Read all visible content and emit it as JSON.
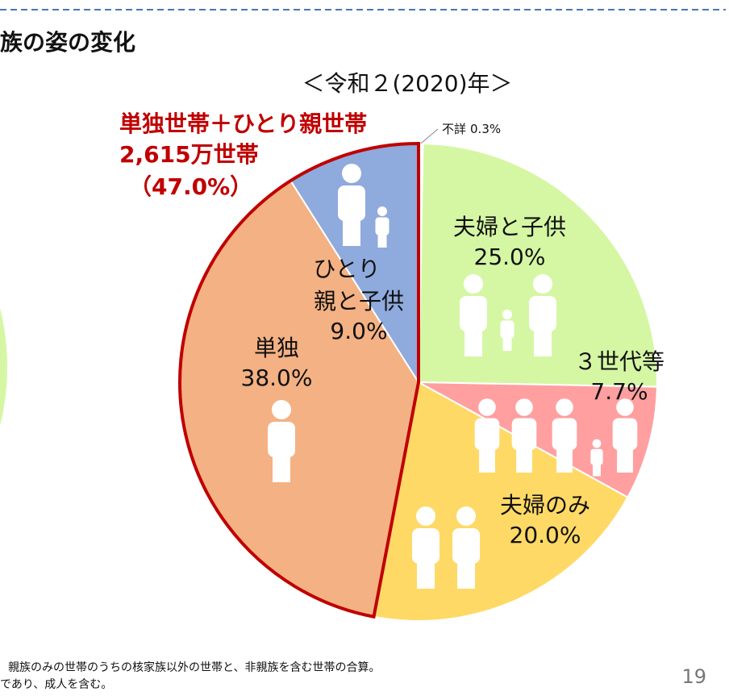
{
  "slide": {
    "title": "族の姿の変化",
    "footnotes": [
      "親族のみの世帯のうちの核家族以外の世帯と、非親族を含む世帯の合算。",
      "であり、成人を含む。"
    ],
    "page": "19"
  },
  "chart_data": {
    "type": "pie",
    "title": "＜令和２(2020)年＞",
    "categories": [
      "不詳",
      "夫婦と子供",
      "３世代等",
      "夫婦のみ",
      "単独",
      "ひとり親と子供"
    ],
    "values": [
      0.3,
      25.0,
      7.7,
      20.0,
      38.0,
      9.0
    ],
    "value_labels": [
      "0.3%",
      "25.0%",
      "7.7%",
      "20.0%",
      "38.0%",
      "9.0%"
    ],
    "colors": [
      "#ffffff",
      "#d5f7a4",
      "#ff9f9f",
      "#ffd966",
      "#f4b183",
      "#8faadc"
    ],
    "group_annotation": {
      "title": "単独世帯＋ひとり親世帯",
      "count": "2,615万世帯",
      "share": "（47.0%）",
      "color": "#c00000"
    }
  }
}
